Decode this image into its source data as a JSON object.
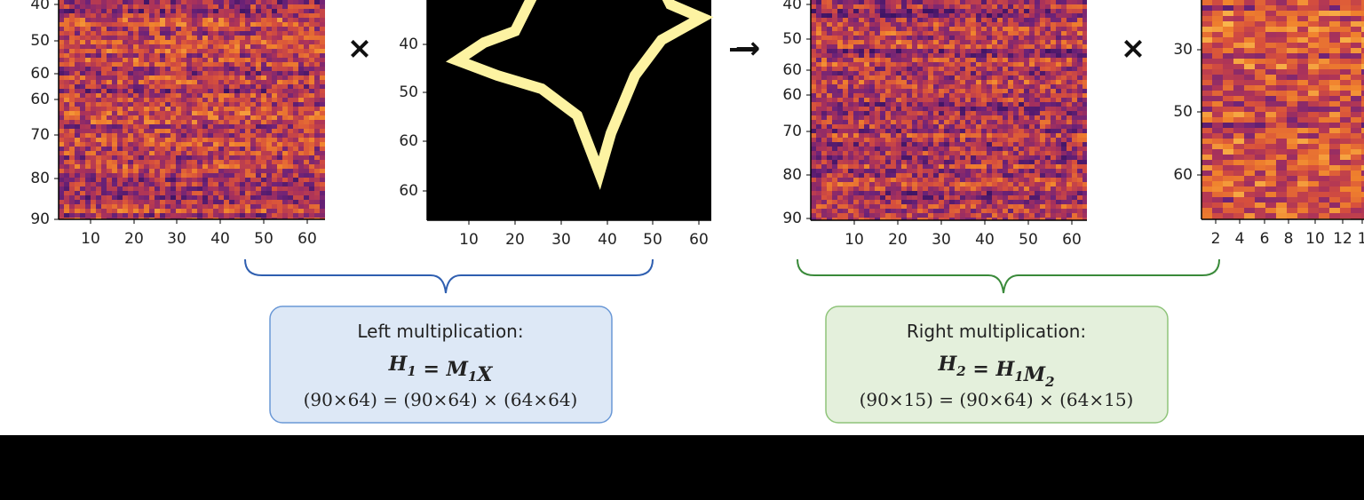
{
  "panels": [
    {
      "y_ticks": [
        "40",
        "50",
        "60",
        "60",
        "70",
        "80",
        "90"
      ],
      "x_ticks": [
        "10",
        "20",
        "30",
        "40",
        "50",
        "60"
      ]
    },
    {
      "y_ticks": [
        "40",
        "50",
        "60",
        "60"
      ],
      "x_ticks": [
        "10",
        "20",
        "30",
        "40",
        "50",
        "60"
      ]
    },
    {
      "y_ticks": [
        "40",
        "50",
        "60",
        "60",
        "70",
        "80",
        "90"
      ],
      "x_ticks": [
        "10",
        "20",
        "30",
        "40",
        "50",
        "60"
      ]
    },
    {
      "y_ticks": [
        "30",
        "50",
        "60"
      ],
      "x_ticks": [
        "2",
        "4",
        "6",
        "8",
        "10",
        "12",
        "1"
      ]
    }
  ],
  "operators": [
    "×",
    "→",
    "×"
  ],
  "boxes": [
    {
      "heading": "Left multiplication:",
      "formula": [
        {
          "text": "H",
          "sub": "1"
        },
        {
          "text": " = "
        },
        {
          "text": "M",
          "sub": "1"
        },
        {
          "text": "X"
        }
      ],
      "dims": "(90×64) = (90×64) × (64×64)"
    },
    {
      "heading": "Right multiplication:",
      "formula": [
        {
          "text": "H",
          "sub": "2"
        },
        {
          "text": " = "
        },
        {
          "text": "H",
          "sub": "1"
        },
        {
          "text": "M",
          "sub": "2"
        }
      ],
      "dims": "(90×15) = (90×64) × (64×15)"
    }
  ]
}
